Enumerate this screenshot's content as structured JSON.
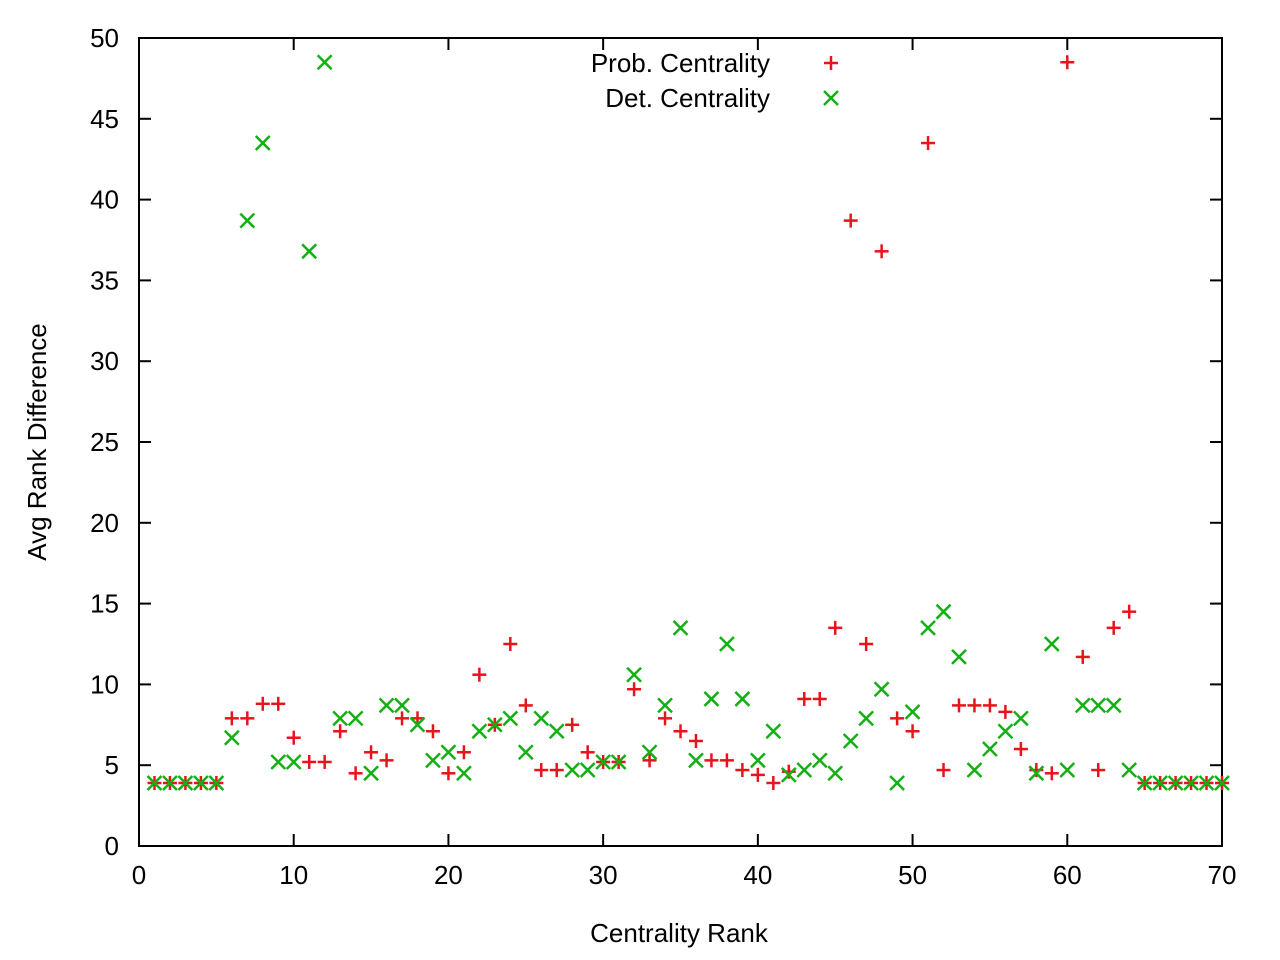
{
  "chart_data": {
    "type": "scatter",
    "title": "",
    "xlabel": "Centrality Rank",
    "ylabel": "Avg Rank Difference",
    "xlim": [
      0,
      70
    ],
    "ylim": [
      0,
      50
    ],
    "xticks": [
      "0",
      "10",
      "20",
      "30",
      "40",
      "50",
      "60",
      "70"
    ],
    "yticks": [
      "0",
      "5",
      "10",
      "15",
      "20",
      "25",
      "30",
      "35",
      "40",
      "45",
      "50"
    ],
    "grid": false,
    "legend_position": "top-center",
    "series": [
      {
        "name": "Prob. Centrality",
        "marker": "plus",
        "color": "#e8141b",
        "points": [
          [
            1,
            3.9
          ],
          [
            2,
            3.9
          ],
          [
            3,
            3.9
          ],
          [
            4,
            3.9
          ],
          [
            5,
            3.9
          ],
          [
            6,
            7.9
          ],
          [
            7,
            7.9
          ],
          [
            8,
            8.8
          ],
          [
            9,
            8.8
          ],
          [
            10,
            6.7
          ],
          [
            11,
            5.2
          ],
          [
            12,
            5.2
          ],
          [
            13,
            7.1
          ],
          [
            14,
            4.5
          ],
          [
            15,
            5.8
          ],
          [
            16,
            5.3
          ],
          [
            17,
            7.9
          ],
          [
            18,
            7.9
          ],
          [
            19,
            7.1
          ],
          [
            20,
            4.5
          ],
          [
            21,
            5.8
          ],
          [
            22,
            10.6
          ],
          [
            23,
            7.5
          ],
          [
            24,
            12.5
          ],
          [
            25,
            8.7
          ],
          [
            26,
            4.7
          ],
          [
            27,
            4.7
          ],
          [
            28,
            7.5
          ],
          [
            29,
            5.8
          ],
          [
            30,
            5.2
          ],
          [
            31,
            5.2
          ],
          [
            32,
            9.7
          ],
          [
            33,
            5.3
          ],
          [
            34,
            7.9
          ],
          [
            35,
            7.1
          ],
          [
            36,
            6.5
          ],
          [
            37,
            5.3
          ],
          [
            38,
            5.3
          ],
          [
            39,
            4.7
          ],
          [
            40,
            4.4
          ],
          [
            41,
            3.9
          ],
          [
            42,
            4.6
          ],
          [
            43,
            9.1
          ],
          [
            44,
            9.1
          ],
          [
            45,
            13.5
          ],
          [
            46,
            38.7
          ],
          [
            47,
            12.5
          ],
          [
            48,
            36.8
          ],
          [
            49,
            7.9
          ],
          [
            50,
            7.1
          ],
          [
            51,
            43.5
          ],
          [
            52,
            4.7
          ],
          [
            53,
            8.7
          ],
          [
            54,
            8.7
          ],
          [
            55,
            8.7
          ],
          [
            56,
            8.3
          ],
          [
            57,
            6.0
          ],
          [
            58,
            4.7
          ],
          [
            59,
            4.5
          ],
          [
            60,
            48.5
          ],
          [
            61,
            11.7
          ],
          [
            62,
            4.7
          ],
          [
            63,
            13.5
          ],
          [
            64,
            14.5
          ],
          [
            65,
            3.9
          ],
          [
            66,
            3.9
          ],
          [
            67,
            3.9
          ],
          [
            68,
            3.9
          ],
          [
            69,
            3.9
          ],
          [
            70,
            3.9
          ]
        ]
      },
      {
        "name": "Det. Centrality",
        "marker": "cross",
        "color": "#13b013",
        "points": [
          [
            1,
            3.9
          ],
          [
            2,
            3.9
          ],
          [
            3,
            3.9
          ],
          [
            4,
            3.9
          ],
          [
            5,
            3.9
          ],
          [
            6,
            6.7
          ],
          [
            7,
            38.7
          ],
          [
            8,
            43.5
          ],
          [
            9,
            5.2
          ],
          [
            10,
            5.2
          ],
          [
            11,
            36.8
          ],
          [
            12,
            48.5
          ],
          [
            13,
            7.9
          ],
          [
            14,
            7.9
          ],
          [
            15,
            4.5
          ],
          [
            16,
            8.7
          ],
          [
            17,
            8.7
          ],
          [
            18,
            7.5
          ],
          [
            19,
            5.3
          ],
          [
            20,
            5.8
          ],
          [
            21,
            4.5
          ],
          [
            22,
            7.1
          ],
          [
            23,
            7.5
          ],
          [
            24,
            7.9
          ],
          [
            25,
            5.8
          ],
          [
            26,
            7.9
          ],
          [
            27,
            7.1
          ],
          [
            28,
            4.7
          ],
          [
            29,
            4.7
          ],
          [
            30,
            5.2
          ],
          [
            31,
            5.2
          ],
          [
            32,
            10.6
          ],
          [
            33,
            5.8
          ],
          [
            34,
            8.7
          ],
          [
            35,
            13.5
          ],
          [
            36,
            5.3
          ],
          [
            37,
            9.1
          ],
          [
            38,
            12.5
          ],
          [
            39,
            9.1
          ],
          [
            40,
            5.3
          ],
          [
            41,
            7.1
          ],
          [
            42,
            4.4
          ],
          [
            43,
            4.7
          ],
          [
            44,
            5.3
          ],
          [
            45,
            4.5
          ],
          [
            46,
            6.5
          ],
          [
            47,
            7.9
          ],
          [
            48,
            9.7
          ],
          [
            49,
            3.9
          ],
          [
            50,
            8.3
          ],
          [
            51,
            13.5
          ],
          [
            52,
            14.5
          ],
          [
            53,
            11.7
          ],
          [
            54,
            4.7
          ],
          [
            55,
            6.0
          ],
          [
            56,
            7.1
          ],
          [
            57,
            7.9
          ],
          [
            58,
            4.5
          ],
          [
            59,
            12.5
          ],
          [
            60,
            4.7
          ],
          [
            61,
            8.7
          ],
          [
            62,
            8.7
          ],
          [
            63,
            8.7
          ],
          [
            64,
            4.7
          ],
          [
            65,
            3.9
          ],
          [
            66,
            3.9
          ],
          [
            67,
            3.9
          ],
          [
            68,
            3.9
          ],
          [
            69,
            3.9
          ],
          [
            70,
            3.9
          ]
        ]
      }
    ]
  }
}
